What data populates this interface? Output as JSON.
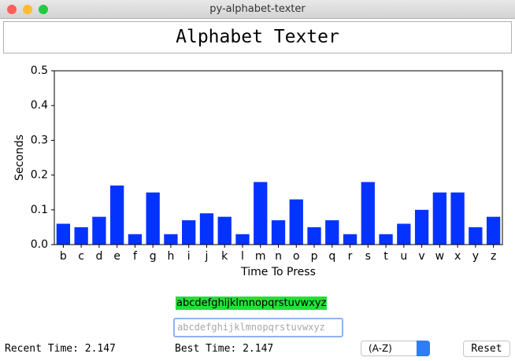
{
  "window_title": "py-alphabet-texter",
  "header_title": "Alphabet Texter",
  "chart_data": {
    "type": "bar",
    "xlabel": "Time To Press",
    "ylabel": "Seconds",
    "categories": [
      "b",
      "c",
      "d",
      "e",
      "f",
      "g",
      "h",
      "i",
      "j",
      "k",
      "l",
      "m",
      "n",
      "o",
      "p",
      "q",
      "r",
      "s",
      "t",
      "u",
      "v",
      "w",
      "x",
      "y",
      "z"
    ],
    "values": [
      0.06,
      0.05,
      0.08,
      0.17,
      0.03,
      0.15,
      0.03,
      0.07,
      0.09,
      0.08,
      0.03,
      0.18,
      0.07,
      0.13,
      0.05,
      0.07,
      0.03,
      0.18,
      0.03,
      0.06,
      0.1,
      0.15,
      0.15,
      0.05,
      0.08
    ],
    "color": "#0433ff",
    "ylim": [
      0,
      0.5
    ],
    "yticks": [
      {
        "value": 0,
        "label": "0.0"
      },
      0.1,
      0.2,
      0.3,
      0.4,
      0.5
    ],
    "grid": false
  },
  "target_text": "abcdefghijklmnopqrstuvwxyz",
  "input_placeholder": "abcdefghijklmnopqrstuvwxyz",
  "recent_time": "Recent Time: 2.147",
  "best_time": "Best Time: 2.147",
  "order_option": "(A-Z)",
  "reset_button": "Reset"
}
